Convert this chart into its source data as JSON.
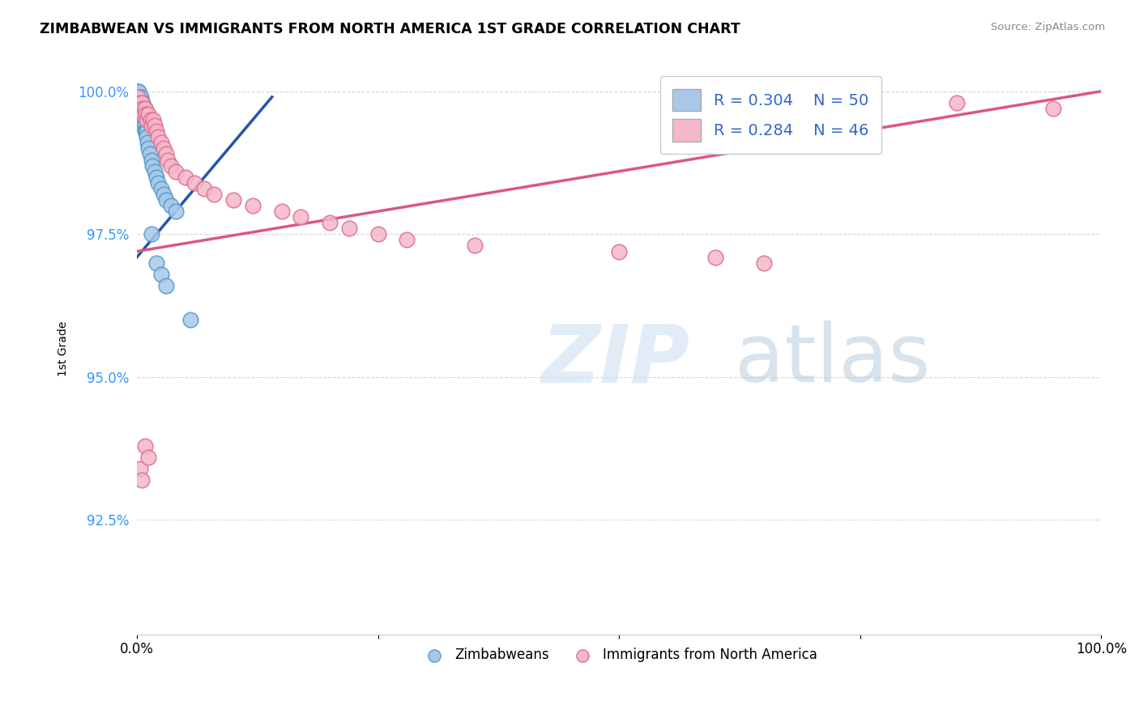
{
  "title": "ZIMBABWEAN VS IMMIGRANTS FROM NORTH AMERICA 1ST GRADE CORRELATION CHART",
  "source": "Source: ZipAtlas.com",
  "ylabel": "1st Grade",
  "xlim": [
    0.0,
    1.0
  ],
  "ylim": [
    0.905,
    1.005
  ],
  "yticks": [
    0.925,
    0.95,
    0.975,
    1.0
  ],
  "ytick_labels": [
    "92.5%",
    "95.0%",
    "97.5%",
    "100.0%"
  ],
  "xticks": [
    0.0,
    0.25,
    0.5,
    0.75,
    1.0
  ],
  "xtick_labels": [
    "0.0%",
    "",
    "",
    "",
    "100.0%"
  ],
  "legend_r1": "R = 0.304",
  "legend_n1": "N = 50",
  "legend_r2": "R = 0.284",
  "legend_n2": "N = 46",
  "blue_color": "#a8c8e8",
  "blue_edge_color": "#5599cc",
  "pink_color": "#f4b8c8",
  "pink_edge_color": "#e07090",
  "blue_line_color": "#2255aa",
  "pink_line_color": "#dd5588",
  "watermark_zip": "ZIP",
  "watermark_atlas": "atlas",
  "background_color": "#ffffff",
  "grid_color": "#cccccc",
  "blue_x": [
    0.001,
    0.001,
    0.001,
    0.002,
    0.002,
    0.002,
    0.003,
    0.003,
    0.003,
    0.004,
    0.004,
    0.005,
    0.005,
    0.005,
    0.006,
    0.006,
    0.007,
    0.007,
    0.008,
    0.008,
    0.009,
    0.01,
    0.01,
    0.011,
    0.012,
    0.013,
    0.015,
    0.016,
    0.018,
    0.02,
    0.022,
    0.025,
    0.028,
    0.03,
    0.035,
    0.04,
    0.001,
    0.002,
    0.003,
    0.004,
    0.005,
    0.006,
    0.007,
    0.008,
    0.009,
    0.015,
    0.02,
    0.025,
    0.03,
    0.055
  ],
  "blue_y": [
    1.0,
    0.999,
    0.998,
    0.999,
    0.998,
    0.997,
    0.998,
    0.997,
    0.996,
    0.997,
    0.996,
    0.997,
    0.996,
    0.995,
    0.996,
    0.995,
    0.995,
    0.994,
    0.994,
    0.993,
    0.993,
    0.993,
    0.992,
    0.991,
    0.99,
    0.989,
    0.988,
    0.987,
    0.986,
    0.985,
    0.984,
    0.983,
    0.982,
    0.981,
    0.98,
    0.979,
    1.0,
    1.0,
    0.999,
    0.999,
    0.998,
    0.998,
    0.997,
    0.997,
    0.996,
    0.975,
    0.97,
    0.968,
    0.966,
    0.96
  ],
  "pink_x": [
    0.001,
    0.003,
    0.004,
    0.005,
    0.006,
    0.007,
    0.008,
    0.009,
    0.01,
    0.012,
    0.014,
    0.015,
    0.017,
    0.018,
    0.02,
    0.022,
    0.025,
    0.028,
    0.03,
    0.032,
    0.035,
    0.04,
    0.05,
    0.06,
    0.07,
    0.08,
    0.1,
    0.12,
    0.15,
    0.17,
    0.2,
    0.22,
    0.25,
    0.28,
    0.35,
    0.5,
    0.6,
    0.65,
    0.7,
    0.75,
    0.85,
    0.95,
    0.003,
    0.005,
    0.008,
    0.012
  ],
  "pink_y": [
    0.999,
    0.998,
    0.997,
    0.998,
    0.997,
    0.996,
    0.997,
    0.996,
    0.995,
    0.996,
    0.995,
    0.994,
    0.995,
    0.994,
    0.993,
    0.992,
    0.991,
    0.99,
    0.989,
    0.988,
    0.987,
    0.986,
    0.985,
    0.984,
    0.983,
    0.982,
    0.981,
    0.98,
    0.979,
    0.978,
    0.977,
    0.976,
    0.975,
    0.974,
    0.973,
    0.972,
    0.971,
    0.97,
    1.0,
    0.999,
    0.998,
    0.997,
    0.934,
    0.932,
    0.938,
    0.936
  ],
  "blue_line_x0": 0.0,
  "blue_line_y0": 0.971,
  "blue_line_x1": 0.14,
  "blue_line_y1": 0.999,
  "pink_line_x0": 0.0,
  "pink_line_y0": 0.972,
  "pink_line_x1": 1.0,
  "pink_line_y1": 1.0
}
